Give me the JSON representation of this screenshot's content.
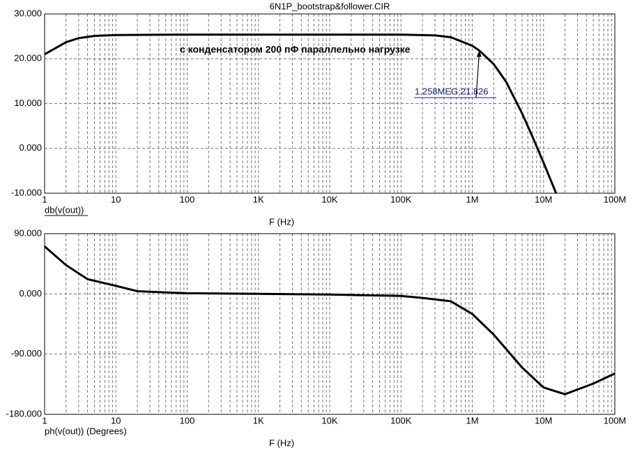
{
  "chart_data": [
    {
      "type": "line",
      "title": "6N1P_bootstrap&follower.CIR",
      "log_x": true,
      "grid": true,
      "xlabel": "F (Hz)",
      "x": [
        1,
        2,
        3,
        5,
        10,
        100,
        1000,
        10000,
        100000,
        300000,
        500000,
        1000000,
        1258000,
        2000000,
        3000000,
        5000000,
        7000000,
        10000000,
        15000000
      ],
      "series": [
        {
          "name": "db(v(out))",
          "color": "#000000",
          "values": [
            21,
            23.7,
            24.6,
            25.1,
            25.3,
            25.4,
            25.4,
            25.4,
            25.4,
            25.2,
            24.8,
            22.9,
            21.826,
            18.8,
            14.8,
            7.8,
            2.6,
            -3.2,
            -10
          ]
        }
      ],
      "xlim": [
        1,
        100000000
      ],
      "xticks": [
        1,
        10,
        100,
        {
          "value": 1000,
          "label": "1K"
        },
        {
          "value": 10000,
          "label": "10K"
        },
        {
          "value": 100000,
          "label": "100K"
        },
        {
          "value": 1000000,
          "label": "1M"
        },
        {
          "value": 10000000,
          "label": "10M"
        },
        {
          "value": 100000000,
          "label": "100M"
        }
      ],
      "ylim": [
        -10,
        30
      ],
      "yticks": [
        {
          "value": -10,
          "label": "-10.000"
        },
        {
          "value": 0,
          "label": "0.000"
        },
        {
          "value": 10,
          "label": "10.000"
        },
        {
          "value": 20,
          "label": "20.000"
        },
        {
          "value": 30,
          "label": "30.000"
        }
      ],
      "note": "с конденсатором 200 пФ параллельно нагрузке",
      "marker": {
        "text": "1.258MEG;21.826",
        "x": 1258000,
        "y": 21.826
      }
    },
    {
      "type": "line",
      "log_x": true,
      "grid": true,
      "xlabel": "F (Hz)",
      "x": [
        1,
        2,
        4,
        10,
        20,
        100,
        1000,
        10000,
        100000,
        200000,
        500000,
        1000000,
        2000000,
        5000000,
        10000000,
        20000000,
        50000000,
        100000000
      ],
      "series": [
        {
          "name": "ph(v(out)) (Degrees)",
          "color": "#000000",
          "values": [
            71,
            43,
            22,
            12,
            4,
            1,
            0,
            -1,
            -3,
            -6,
            -11,
            -30,
            -61,
            -110,
            -140,
            -150,
            -134,
            -119
          ]
        }
      ],
      "xlim": [
        1,
        100000000
      ],
      "xticks": [
        1,
        10,
        100,
        {
          "value": 1000,
          "label": "1K"
        },
        {
          "value": 10000,
          "label": "10K"
        },
        {
          "value": 100000,
          "label": "100K"
        },
        {
          "value": 1000000,
          "label": "1M"
        },
        {
          "value": 10000000,
          "label": "10M"
        },
        {
          "value": 100000000,
          "label": "100M"
        }
      ],
      "ylim": [
        -180,
        90
      ],
      "yticks": [
        {
          "value": -180,
          "label": "-180.000"
        },
        {
          "value": -90,
          "label": "-90.000"
        },
        {
          "value": 0,
          "label": "0.000"
        },
        {
          "value": 90,
          "label": "90.000"
        }
      ]
    }
  ]
}
